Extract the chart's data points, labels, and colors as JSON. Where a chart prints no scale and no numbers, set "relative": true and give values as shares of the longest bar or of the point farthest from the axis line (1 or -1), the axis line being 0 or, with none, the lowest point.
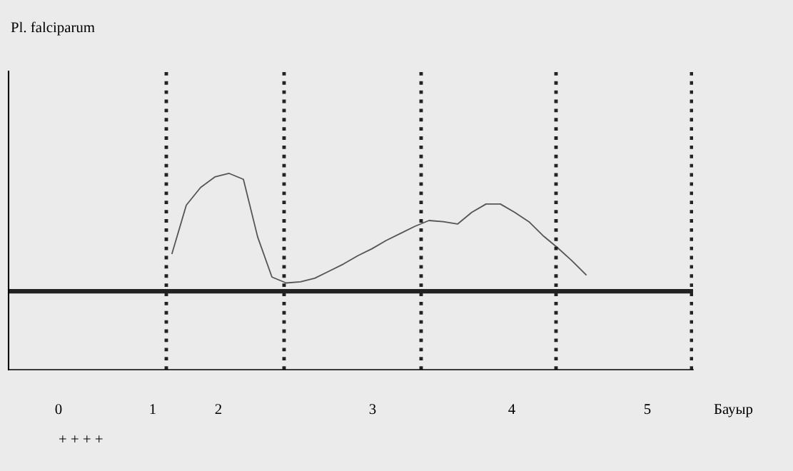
{
  "chart_data": {
    "type": "line",
    "title": "Pl. falciparum",
    "relative": true,
    "color": "#555555",
    "categories": [
      null,
      null,
      null,
      null,
      null,
      null,
      null,
      null,
      null,
      null,
      null,
      null,
      null,
      null,
      null,
      null,
      null,
      null,
      null,
      null,
      null,
      null,
      null,
      null,
      null,
      null,
      null,
      null,
      null,
      null,
      null,
      null,
      null,
      null,
      null,
      null,
      null,
      null,
      null,
      null,
      null,
      null,
      null,
      null,
      null,
      null,
      null,
      null
    ],
    "values": [
      null,
      null,
      null,
      null,
      null,
      null,
      null,
      null,
      null,
      null,
      null,
      0.32,
      0.73,
      0.88,
      0.97,
      1,
      0.95,
      0.46,
      0.12,
      0.07,
      0.08,
      0.11,
      0.17,
      0.23,
      0.3,
      0.36,
      0.43,
      0.49,
      0.55,
      0.6,
      0.59,
      0.57,
      0.67,
      0.74,
      0.74,
      0.67,
      0.59,
      0.47,
      0.37,
      0.26,
      0.14,
      null,
      null,
      null,
      null,
      null,
      null,
      null
    ],
    "annotations": [
      "0",
      "1",
      "2",
      "3",
      "4",
      "5",
      "Бауыр",
      "+ + + +"
    ],
    "grid": false,
    "legend": false,
    "marker": "none",
    "line_style": "solid"
  }
}
